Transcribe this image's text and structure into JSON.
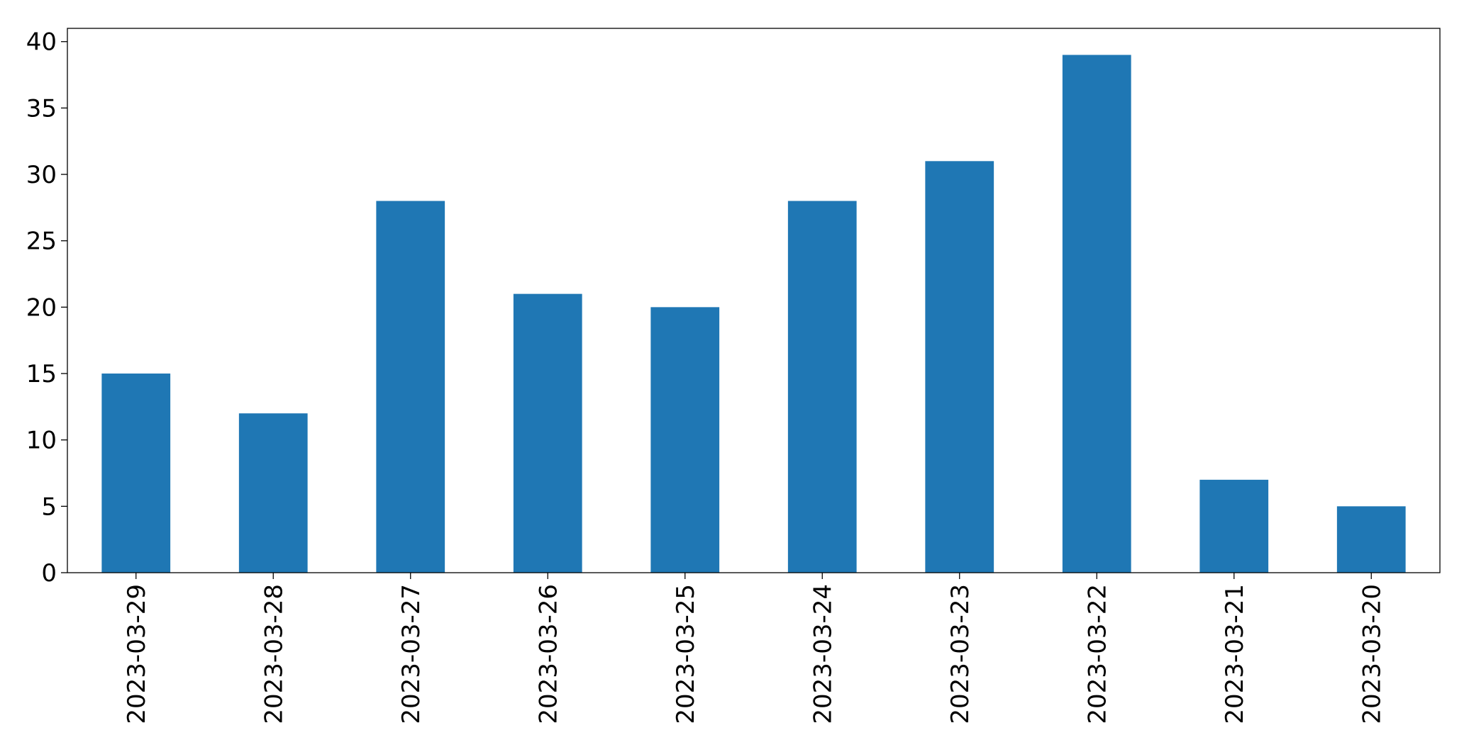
{
  "chart_data": {
    "type": "bar",
    "categories": [
      "2023-03-29",
      "2023-03-28",
      "2023-03-27",
      "2023-03-26",
      "2023-03-25",
      "2023-03-24",
      "2023-03-23",
      "2023-03-22",
      "2023-03-21",
      "2023-03-20"
    ],
    "values": [
      15,
      12,
      28,
      21,
      20,
      28,
      31,
      39,
      7,
      5
    ],
    "color": "#1f77b4",
    "ylim": [
      0,
      41
    ],
    "yticks": [
      0,
      5,
      10,
      15,
      20,
      25,
      30,
      35,
      40
    ],
    "grid": false
  }
}
